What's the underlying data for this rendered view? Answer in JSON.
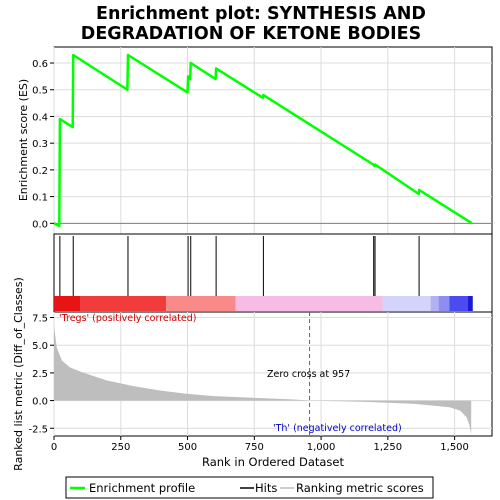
{
  "chart_data": {
    "type": "line",
    "title": "Enrichment plot: SYNTHESIS AND\nDEGRADATION OF KETONE BODIES",
    "xlabel": "Rank in Ordered Dataset",
    "top_ylabel": "Enrichment score (ES)",
    "bottom_ylabel": "Ranked list metric (Diff_of_Classes)",
    "xlim": [
      0,
      1640
    ],
    "x_ticks": [
      0,
      250,
      500,
      750,
      1000,
      1250,
      1500
    ],
    "x_tick_labels": [
      "0",
      "250",
      "500",
      "750",
      "1,000",
      "1,250",
      "1,500"
    ],
    "es_ylim": [
      -0.04,
      0.66
    ],
    "es_ticks": [
      0.0,
      0.1,
      0.2,
      0.3,
      0.4,
      0.5,
      0.6
    ],
    "es_tick_labels": [
      "0.0",
      "0.1",
      "0.2",
      "0.3",
      "0.4",
      "0.5",
      "0.6"
    ],
    "metric_ylim": [
      -3.2,
      8.0
    ],
    "metric_ticks": [
      -2.5,
      0.0,
      2.5,
      5.0,
      7.5
    ],
    "metric_tick_labels": [
      "-2.5",
      "0.0",
      "2.5",
      "5.0",
      "7.5"
    ],
    "series": [
      {
        "name": "Enrichment profile",
        "color": "#00ff00",
        "x": [
          0,
          20,
          22,
          70,
          72,
          275,
          277,
          500,
          502,
          510,
          512,
          605,
          607,
          782,
          784,
          1195,
          1200,
          1202,
          1365,
          1367,
          1565
        ],
        "y": [
          0.0,
          -0.01,
          0.39,
          0.36,
          0.63,
          0.5,
          0.63,
          0.49,
          0.55,
          0.54,
          0.6,
          0.54,
          0.58,
          0.47,
          0.48,
          0.22,
          0.215,
          0.22,
          0.11,
          0.125,
          0.0
        ]
      }
    ],
    "hits": [
      22,
      72,
      277,
      502,
      512,
      607,
      784,
      1197,
      1202,
      1367
    ],
    "ranked_metric": {
      "x": [
        0,
        10,
        30,
        60,
        100,
        150,
        200,
        300,
        400,
        500,
        600,
        700,
        800,
        900,
        957,
        1050,
        1150,
        1250,
        1350,
        1420,
        1480,
        1520,
        1545,
        1555,
        1562
      ],
      "y": [
        6.8,
        4.8,
        3.6,
        3.0,
        2.6,
        2.2,
        1.8,
        1.3,
        0.9,
        0.6,
        0.4,
        0.3,
        0.2,
        0.1,
        0.0,
        -0.05,
        -0.1,
        -0.2,
        -0.3,
        -0.45,
        -0.6,
        -0.9,
        -1.5,
        -2.2,
        -3.0
      ]
    },
    "color_bar": [
      {
        "from": 0,
        "to": 100,
        "color": "#e81414"
      },
      {
        "from": 100,
        "to": 420,
        "color": "#f23c3c"
      },
      {
        "from": 420,
        "to": 680,
        "color": "#f98a8a"
      },
      {
        "from": 680,
        "to": 1230,
        "color": "#f7bce4"
      },
      {
        "from": 1230,
        "to": 1410,
        "color": "#d4d4fb"
      },
      {
        "from": 1410,
        "to": 1440,
        "color": "#b2b2f2"
      },
      {
        "from": 1440,
        "to": 1480,
        "color": "#8d8df5"
      },
      {
        "from": 1480,
        "to": 1550,
        "color": "#4b4bf0"
      },
      {
        "from": 1550,
        "to": 1568,
        "color": "#1a1ad6"
      }
    ],
    "zero_cross_x": 957,
    "annotations": {
      "positive": "'Tregs' (positively correlated)",
      "negative": "'Th' (negatively correlated)",
      "zero_cross": "Zero cross at 957"
    },
    "legend": {
      "position": "bottom",
      "items": [
        "Enrichment profile",
        "Hits",
        "Ranking metric scores"
      ]
    },
    "colors": {
      "profile": "#00ff00",
      "hits": "#000000",
      "metric_fill": "#bebebe",
      "positive_text": "#cc0000",
      "negative_text": "#0000cc"
    }
  }
}
